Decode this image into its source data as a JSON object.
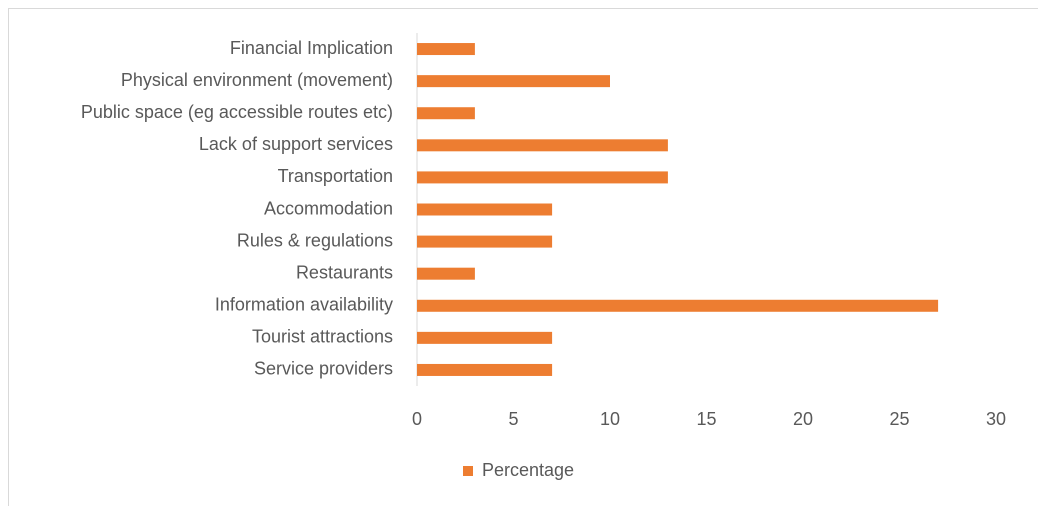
{
  "chart_data": {
    "type": "bar",
    "orientation": "horizontal",
    "categories": [
      "Financial Implication",
      "Physical environment (movement)",
      "Public space (eg accessible routes etc)",
      "Lack of support services",
      "Transportation",
      "Accommodation",
      "Rules & regulations",
      "Restaurants",
      "Information availability",
      "Tourist attractions",
      "Service providers"
    ],
    "series": [
      {
        "name": "Percentage",
        "color": "#ed7d31",
        "values": [
          3,
          10,
          3,
          13,
          13,
          7,
          7,
          3,
          27,
          7,
          7
        ]
      }
    ],
    "xlim": [
      0,
      30
    ],
    "xticks": [
      0,
      5,
      10,
      15,
      20,
      25,
      30
    ],
    "grid": false,
    "legend": "bottom"
  }
}
